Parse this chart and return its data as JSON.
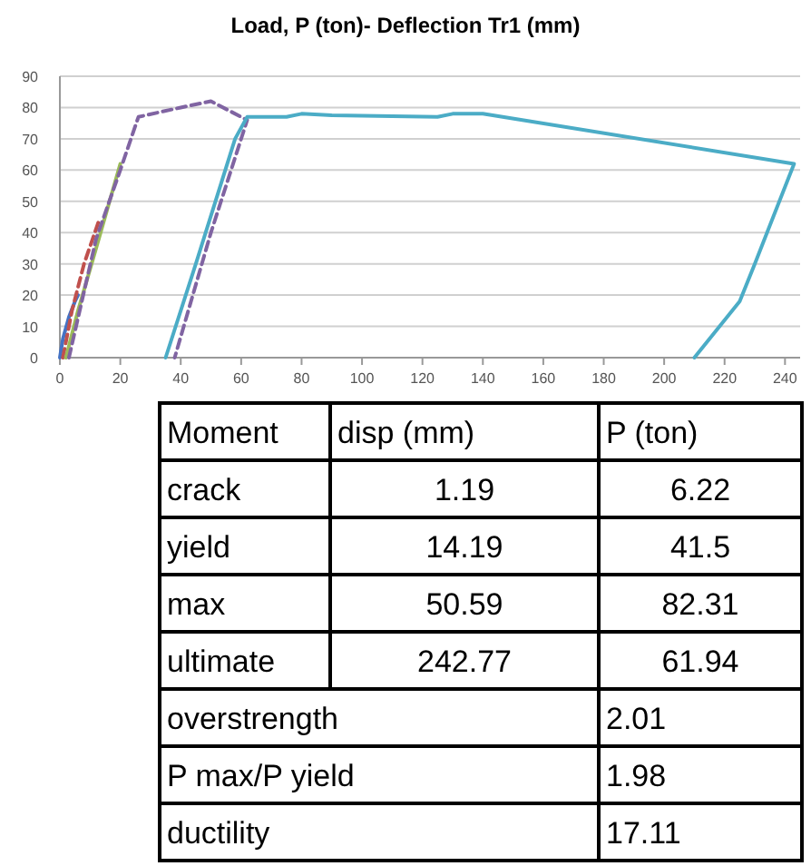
{
  "chart_data": [
    {
      "type": "line",
      "title": "Load, P (ton)- Deflection Tr1 (mm)",
      "xlim": [
        0,
        245
      ],
      "xticks": [
        0,
        20,
        40,
        60,
        80,
        100,
        120,
        140,
        160,
        180,
        200,
        220,
        240
      ],
      "ylim": [
        0,
        90
      ],
      "yticks": [
        0,
        10,
        20,
        30,
        40,
        50,
        60,
        70,
        80,
        90
      ],
      "grid": "y",
      "marker": "none",
      "series": [
        {
          "color": "#4472c4",
          "line_style": "solid",
          "x": [
            0,
            1,
            3,
            5,
            6
          ],
          "values": [
            0,
            6,
            13,
            18,
            20
          ]
        },
        {
          "color": "#c0504d",
          "line_style": "dashed",
          "x": [
            1,
            4,
            8,
            13
          ],
          "values": [
            0,
            15,
            30,
            44
          ]
        },
        {
          "color": "#9bbb59",
          "line_style": "solid",
          "x": [
            2,
            6,
            12,
            20
          ],
          "values": [
            0,
            15,
            35,
            62
          ]
        },
        {
          "color": "#8064a2",
          "line_style": "dashed",
          "x": [
            3,
            12,
            20,
            26,
            40,
            50,
            62,
            50,
            38
          ],
          "values": [
            0,
            38,
            60,
            77,
            80,
            82,
            76,
            40,
            0
          ]
        },
        {
          "color": "#4bacc6",
          "line_style": "solid",
          "x": [
            35,
            45,
            58,
            62,
            75,
            80,
            90,
            125,
            130,
            140,
            243,
            230,
            225,
            210
          ],
          "values": [
            0,
            30,
            70,
            77,
            77,
            78,
            77.5,
            77,
            78,
            78,
            62,
            30,
            18,
            0
          ]
        }
      ]
    },
    {
      "type": "other",
      "categories": [
        "Moment",
        "disp (mm)",
        "P (ton)"
      ],
      "y_categories": [
        "crack",
        "yield",
        "max",
        "ultimate",
        "overstrength",
        "P max/P yield",
        "ductility"
      ],
      "cell_labels": [
        [
          "1.19",
          "6.22"
        ],
        [
          "14.19",
          "41.5"
        ],
        [
          "50.59",
          "82.31"
        ],
        [
          "242.77",
          "61.94"
        ],
        [
          null,
          "2.01"
        ],
        [
          null,
          "1.98"
        ],
        [
          null,
          "17.11"
        ]
      ]
    }
  ]
}
